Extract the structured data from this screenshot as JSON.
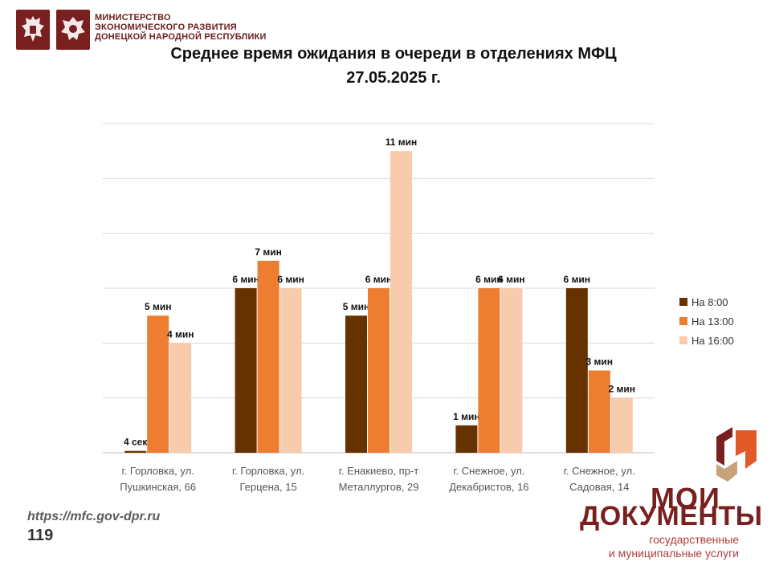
{
  "header": {
    "ministry_lines": [
      "МИНИСТЕРСТВО",
      "ЭКОНОМИЧЕСКОГО РАЗВИТИЯ",
      "ДОНЕЦКОЙ НАРОДНОЙ РЕСПУБЛИКИ"
    ],
    "emblem_color": "#7a1f1f"
  },
  "chart_data": {
    "type": "bar",
    "title": "Среднее время ожидания в очереди в отделениях МФЦ",
    "subtitle": "27.05.2025 г.",
    "categories": [
      [
        "г. Горловка, ул.",
        "Пушкинская, 66"
      ],
      [
        "г. Горловка, ул.",
        "Герцена, 15"
      ],
      [
        "г. Енакиево, пр-т",
        "Металлургов, 29"
      ],
      [
        "г. Снежное, ул.",
        "Декабристов, 16"
      ],
      [
        "г. Снежное, ул.",
        "Садовая, 14"
      ]
    ],
    "series": [
      {
        "name": "На 8:00",
        "color": "#663300",
        "values": [
          0.0667,
          6,
          5,
          1,
          6
        ],
        "labels": [
          "4 сек",
          "6 мин",
          "5 мин",
          "1 мин",
          "6 мин"
        ]
      },
      {
        "name": "На 13:00",
        "color": "#ed7d31",
        "values": [
          5,
          7,
          6,
          6,
          3
        ],
        "labels": [
          "5 мин",
          "7 мин",
          "6 мин",
          "6 мин",
          "3 мин"
        ]
      },
      {
        "name": "На 16:00",
        "color": "#f8cbad",
        "values": [
          4,
          6,
          11,
          6,
          2
        ],
        "labels": [
          "4 мин",
          "6 мин",
          "11 мин",
          "6 мин",
          "2 мин"
        ]
      }
    ],
    "ylim": [
      0,
      12
    ],
    "y_gridlines": [
      2,
      4,
      6,
      8,
      10,
      12
    ],
    "grid": true,
    "legend_position": "right"
  },
  "footer": {
    "url": "https://mfc.gov-dpr.ru",
    "page_number": "119"
  },
  "brand": {
    "line1": "МОИ",
    "line2": "ДОКУМЕНТЫ",
    "sub1": "государственные",
    "sub2": "и муниципальные услуги",
    "color": "#7a1f1f",
    "accent": "#e35a2a"
  }
}
